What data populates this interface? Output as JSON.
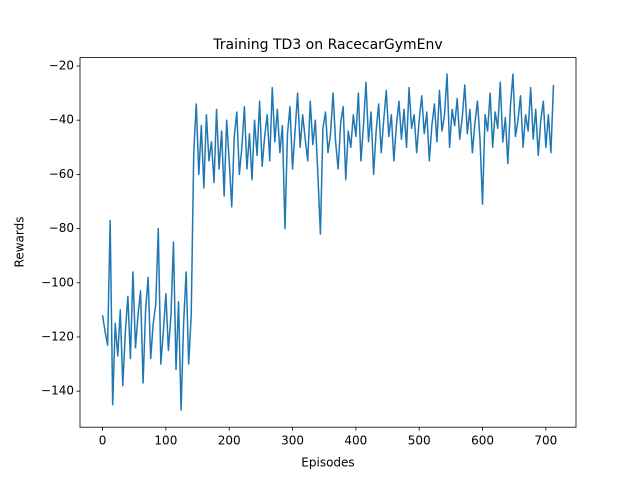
{
  "chart_data": {
    "type": "line",
    "title": "Training TD3 on RacecarGymEnv",
    "xlabel": "Episodes",
    "ylabel": "Rewards",
    "x": [
      0,
      4,
      8,
      12,
      16,
      20,
      24,
      28,
      32,
      36,
      40,
      44,
      48,
      52,
      56,
      60,
      64,
      68,
      72,
      76,
      80,
      84,
      88,
      92,
      96,
      100,
      104,
      108,
      112,
      116,
      120,
      124,
      128,
      132,
      136,
      140,
      144,
      148,
      152,
      156,
      160,
      164,
      168,
      172,
      176,
      180,
      184,
      188,
      192,
      196,
      200,
      204,
      208,
      212,
      216,
      220,
      224,
      228,
      232,
      236,
      240,
      244,
      248,
      252,
      256,
      260,
      264,
      268,
      272,
      276,
      280,
      284,
      288,
      292,
      296,
      300,
      304,
      308,
      312,
      316,
      320,
      324,
      328,
      332,
      336,
      340,
      344,
      348,
      352,
      356,
      360,
      364,
      368,
      372,
      376,
      380,
      384,
      388,
      392,
      396,
      400,
      404,
      408,
      412,
      416,
      420,
      424,
      428,
      432,
      436,
      440,
      444,
      448,
      452,
      456,
      460,
      464,
      468,
      472,
      476,
      480,
      484,
      488,
      492,
      496,
      500,
      504,
      508,
      512,
      516,
      520,
      524,
      528,
      532,
      536,
      540,
      544,
      548,
      552,
      556,
      560,
      564,
      568,
      572,
      576,
      580,
      584,
      588,
      592,
      596,
      600,
      604,
      608,
      612,
      616,
      620,
      624,
      628,
      632,
      636,
      640,
      644,
      648,
      652,
      656,
      660,
      664,
      668,
      672,
      676,
      680,
      684,
      688,
      692,
      696,
      700,
      704,
      708,
      712
    ],
    "series": [
      {
        "name": "Rewards",
        "color": "#1f77b4",
        "values": [
          -112,
          -118,
          -123,
          -77,
          -145,
          -115,
          -127,
          -110,
          -138,
          -118,
          -105,
          -128,
          -96,
          -124,
          -112,
          -103,
          -137,
          -110,
          -98,
          -128,
          -115,
          -108,
          -80,
          -130,
          -118,
          -104,
          -125,
          -112,
          -85,
          -132,
          -107,
          -147,
          -115,
          -96,
          -130,
          -112,
          -52,
          -34,
          -60,
          -42,
          -65,
          -38,
          -55,
          -48,
          -63,
          -36,
          -58,
          -44,
          -68,
          -40,
          -55,
          -72,
          -46,
          -37,
          -60,
          -50,
          -35,
          -58,
          -45,
          -62,
          -40,
          -53,
          -33,
          -57,
          -46,
          -38,
          -55,
          -28,
          -48,
          -36,
          -52,
          -42,
          -80,
          -45,
          -35,
          -58,
          -44,
          -30,
          -50,
          -38,
          -47,
          -55,
          -33,
          -49,
          -40,
          -60,
          -82,
          -43,
          -37,
          -52,
          -45,
          -30,
          -48,
          -58,
          -41,
          -35,
          -62,
          -44,
          -50,
          -38,
          -46,
          -30,
          -55,
          -42,
          -26,
          -48,
          -37,
          -60,
          -44,
          -34,
          -52,
          -40,
          -29,
          -46,
          -38,
          -55,
          -42,
          -33,
          -47,
          -36,
          -50,
          -28,
          -43,
          -38,
          -52,
          -40,
          -31,
          -45,
          -37,
          -55,
          -42,
          -34,
          -48,
          -29,
          -44,
          -38,
          -23,
          -50,
          -36,
          -42,
          -32,
          -47,
          -39,
          -27,
          -45,
          -36,
          -52,
          -41,
          -33,
          -47,
          -71,
          -38,
          -44,
          -30,
          -50,
          -37,
          -43,
          -26,
          -48,
          -39,
          -56,
          -35,
          -23,
          -46,
          -40,
          -31,
          -50,
          -38,
          -44,
          -28,
          -47,
          -36,
          -53,
          -40,
          -33,
          -50,
          -38,
          -52,
          -27
        ]
      }
    ],
    "xlim": [
      -35.6,
      747.6
    ],
    "xticks": [
      0,
      100,
      200,
      300,
      400,
      500,
      600,
      700
    ],
    "ylim": [
      -153.3,
      -16.9
    ],
    "yticks": [
      {
        "value": -140,
        "label": "−140"
      },
      {
        "value": -120,
        "label": "−120"
      },
      {
        "value": -100,
        "label": "−100"
      },
      {
        "value": -80,
        "label": "−80"
      },
      {
        "value": -60,
        "label": "−60"
      },
      {
        "value": -40,
        "label": "−40"
      },
      {
        "value": -20,
        "label": "−20"
      }
    ]
  }
}
